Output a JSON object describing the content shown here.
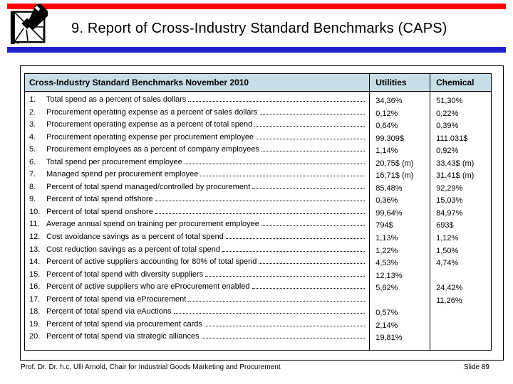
{
  "header": {
    "title": "9. Report of Cross-Industry Standard Benchmarks (CAPS)"
  },
  "icons": {
    "logo": "pen-and-square-chair-emblem"
  },
  "colors": {
    "top_bar": "#fe0000",
    "divider_bar": "#2222cc",
    "table_header_bg": "#c8dde6"
  },
  "table": {
    "header": {
      "benchmarks": "Cross-Industry Standard Benchmarks November 2010",
      "utilities": "Utilities",
      "chemical": "Chemical"
    },
    "rows": [
      {
        "no": "1.",
        "label": "Total spend as a percent of sales dollars",
        "utilities": "34,36%",
        "chemical": "51,30%"
      },
      {
        "no": "2.",
        "label": "Procurement operating expense as a percent of sales dollars",
        "utilities": "0,12%",
        "chemical": "0,22%"
      },
      {
        "no": "3.",
        "label": "Procurement operating expense as a percent of total spend",
        "utilities": "0,64%",
        "chemical": "0,39%"
      },
      {
        "no": "4.",
        "label": "Procurement operating expense per procurement employee",
        "utilities": "99.309$",
        "chemical": "111.031$"
      },
      {
        "no": "5.",
        "label": "Procurement employees as a percent of company employees",
        "utilities": "1,14%",
        "chemical": "0,92%"
      },
      {
        "no": "6.",
        "label": "Total spend per procurement employee",
        "utilities": "20,75$ (m)",
        "chemical": "33,43$ (m)"
      },
      {
        "no": "7.",
        "label": "Managed spend per procurement employee",
        "utilities": "16,71$ (m)",
        "chemical": "31,41$ (m)"
      },
      {
        "no": "8.",
        "label": "Percent of total spend managed/controlled by procurement",
        "utilities": "85,48%",
        "chemical": "92,29%"
      },
      {
        "no": "9.",
        "label": "Percent of total spend offshore",
        "utilities": "0,36%",
        "chemical": "15,03%"
      },
      {
        "no": "10.",
        "label": "Percent of total spend onshore",
        "utilities": "99,64%",
        "chemical": "84,97%"
      },
      {
        "no": "11.",
        "label": "Average annual spend on training per procurement employee",
        "utilities": "794$",
        "chemical": "693$"
      },
      {
        "no": "12.",
        "label": "Cost avoidance savings as a percent of total spend",
        "utilities": "1,13%",
        "chemical": "1,12%"
      },
      {
        "no": "13.",
        "label": "Cost reduction savings as a percent of total spend",
        "utilities": "1,22%",
        "chemical": "1,50%"
      },
      {
        "no": "14.",
        "label": "Percent of active suppliers accounting for 80% of total spend",
        "utilities": "4,53%",
        "chemical": "4,74%"
      },
      {
        "no": "15.",
        "label": "Percent of total spend with diversity suppliers",
        "utilities": "12,13%",
        "chemical": ""
      },
      {
        "no": "16.",
        "label": "Percent of active suppliers who are eProcurement enabled",
        "utilities": "5,62%",
        "chemical": "24,42%"
      },
      {
        "no": "17.",
        "label": "Percent of total spend via eProcurement",
        "utilities": "",
        "chemical": "11,26%"
      },
      {
        "no": "18.",
        "label": "Percent of total spend via eAuctions",
        "utilities": "0,57%",
        "chemical": ""
      },
      {
        "no": "19.",
        "label": "Percent of total spend via procurement cards",
        "utilities": "2,14%",
        "chemical": ""
      },
      {
        "no": "20.",
        "label": "Percent of total spend via strategic alliances",
        "utilities": "19,81%",
        "chemical": ""
      }
    ]
  },
  "footer": {
    "left": "Prof. Dr. Dr. h.c. Ulli Arnold, Chair for Industrial Goods Marketing and Procurement",
    "right": "Slide 89"
  }
}
